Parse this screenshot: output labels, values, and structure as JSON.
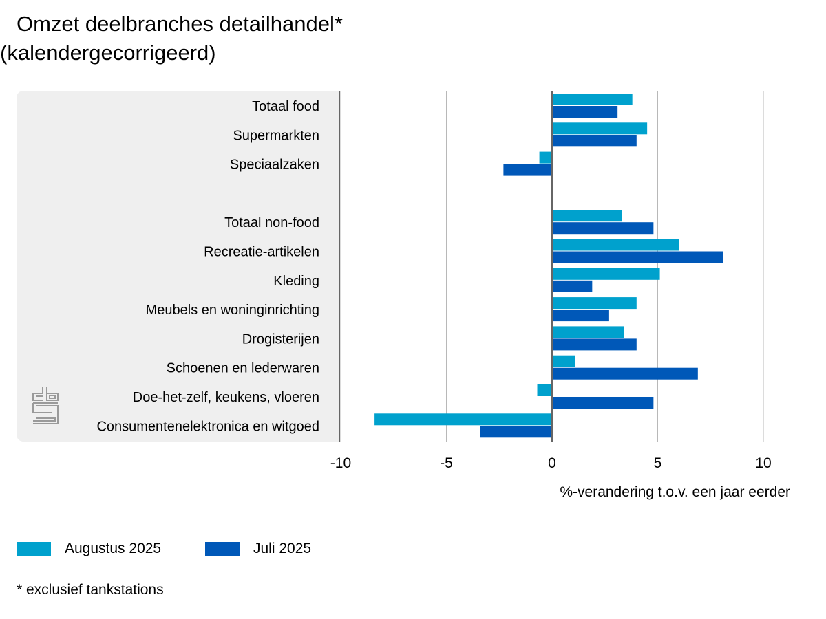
{
  "title_line1": "Omzet deelbranches detailhandel*",
  "title_line2": "(kalendergecorrigeerd)",
  "footnote": "* exclusief tankstations",
  "logo": "cbs-logo-icon",
  "chart_data": {
    "type": "bar",
    "orientation": "horizontal",
    "title": "Omzet deelbranches detailhandel* (kalendergecorrigeerd)",
    "xlabel": "%-verandering t.o.v. een jaar eerder",
    "ylabel": "",
    "xlim": [
      -10,
      10
    ],
    "xticks": [
      -10,
      -5,
      0,
      5,
      10
    ],
    "xtick_labels": [
      "-10",
      "-5",
      "0",
      "5",
      "10"
    ],
    "grid": true,
    "legend_position": "bottom-left",
    "categories": [
      "Totaal food",
      "Supermarkten",
      "Speciaalzaken",
      "",
      "Totaal non-food",
      "Recreatie-artikelen",
      "Kleding",
      "Meubels en woninginrichting",
      "Drogisterijen",
      "Schoenen en lederwaren",
      "Doe-het-zelf, keukens, vloeren",
      "Consumentenelektronica en witgoed"
    ],
    "series": [
      {
        "name": "Augustus 2025",
        "color": "#00a1cd",
        "values": [
          3.8,
          4.5,
          -0.6,
          null,
          3.3,
          6.0,
          5.1,
          4.0,
          3.4,
          1.1,
          -0.7,
          -8.4
        ]
      },
      {
        "name": "Juli 2025",
        "color": "#0058b8",
        "values": [
          3.1,
          4.0,
          -2.3,
          null,
          4.8,
          8.1,
          1.9,
          2.7,
          4.0,
          6.9,
          4.8,
          -3.4
        ]
      }
    ]
  }
}
